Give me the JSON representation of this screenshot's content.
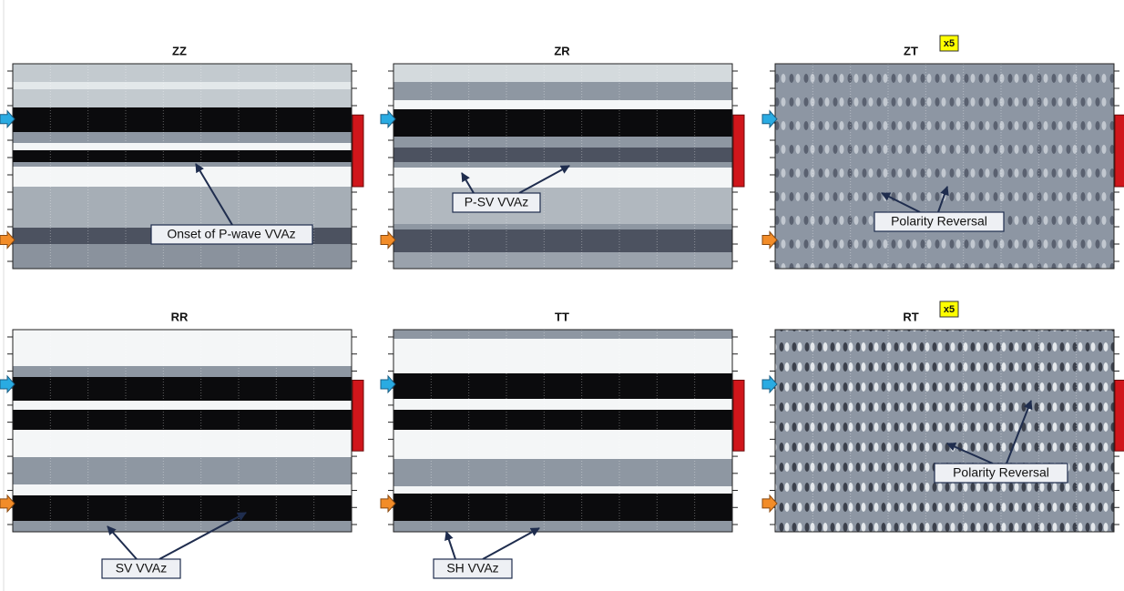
{
  "panels": [
    {
      "title": "ZZ"
    },
    {
      "title": "ZR"
    },
    {
      "title": "ZT",
      "badge": "x5"
    },
    {
      "title": "RR"
    },
    {
      "title": "TT"
    },
    {
      "title": "RT",
      "badge": "x5"
    }
  ],
  "annotations": [
    {
      "text": "Onset of P-wave VVAz"
    },
    {
      "text": "P-SV VVAz"
    },
    {
      "text": "Polarity Reversal"
    },
    {
      "text": "SV VVAz"
    },
    {
      "text": "SH VVAz"
    },
    {
      "text": "Polarity Reversal"
    }
  ]
}
